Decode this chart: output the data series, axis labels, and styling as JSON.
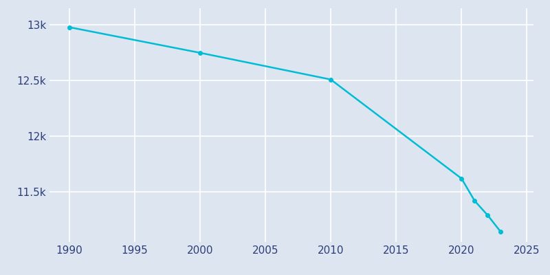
{
  "years": [
    1990,
    2000,
    2010,
    2020,
    2021,
    2022,
    2023
  ],
  "population": [
    12980,
    12750,
    12510,
    11620,
    11420,
    11290,
    11140
  ],
  "line_color": "#00BCD4",
  "marker_color": "#00BCD4",
  "background_color": "#DDE6F0",
  "grid_color": "#FFFFFF",
  "tick_label_color": "#2C3E7A",
  "xlim": [
    1988.5,
    2025.5
  ],
  "ylim": [
    11050,
    13150
  ],
  "xticks": [
    1990,
    1995,
    2000,
    2005,
    2010,
    2015,
    2020,
    2025
  ],
  "yticks": [
    11500,
    12000,
    12500,
    13000
  ],
  "ytick_labels": [
    "11.5k",
    "12k",
    "12.5k",
    "13k"
  ]
}
